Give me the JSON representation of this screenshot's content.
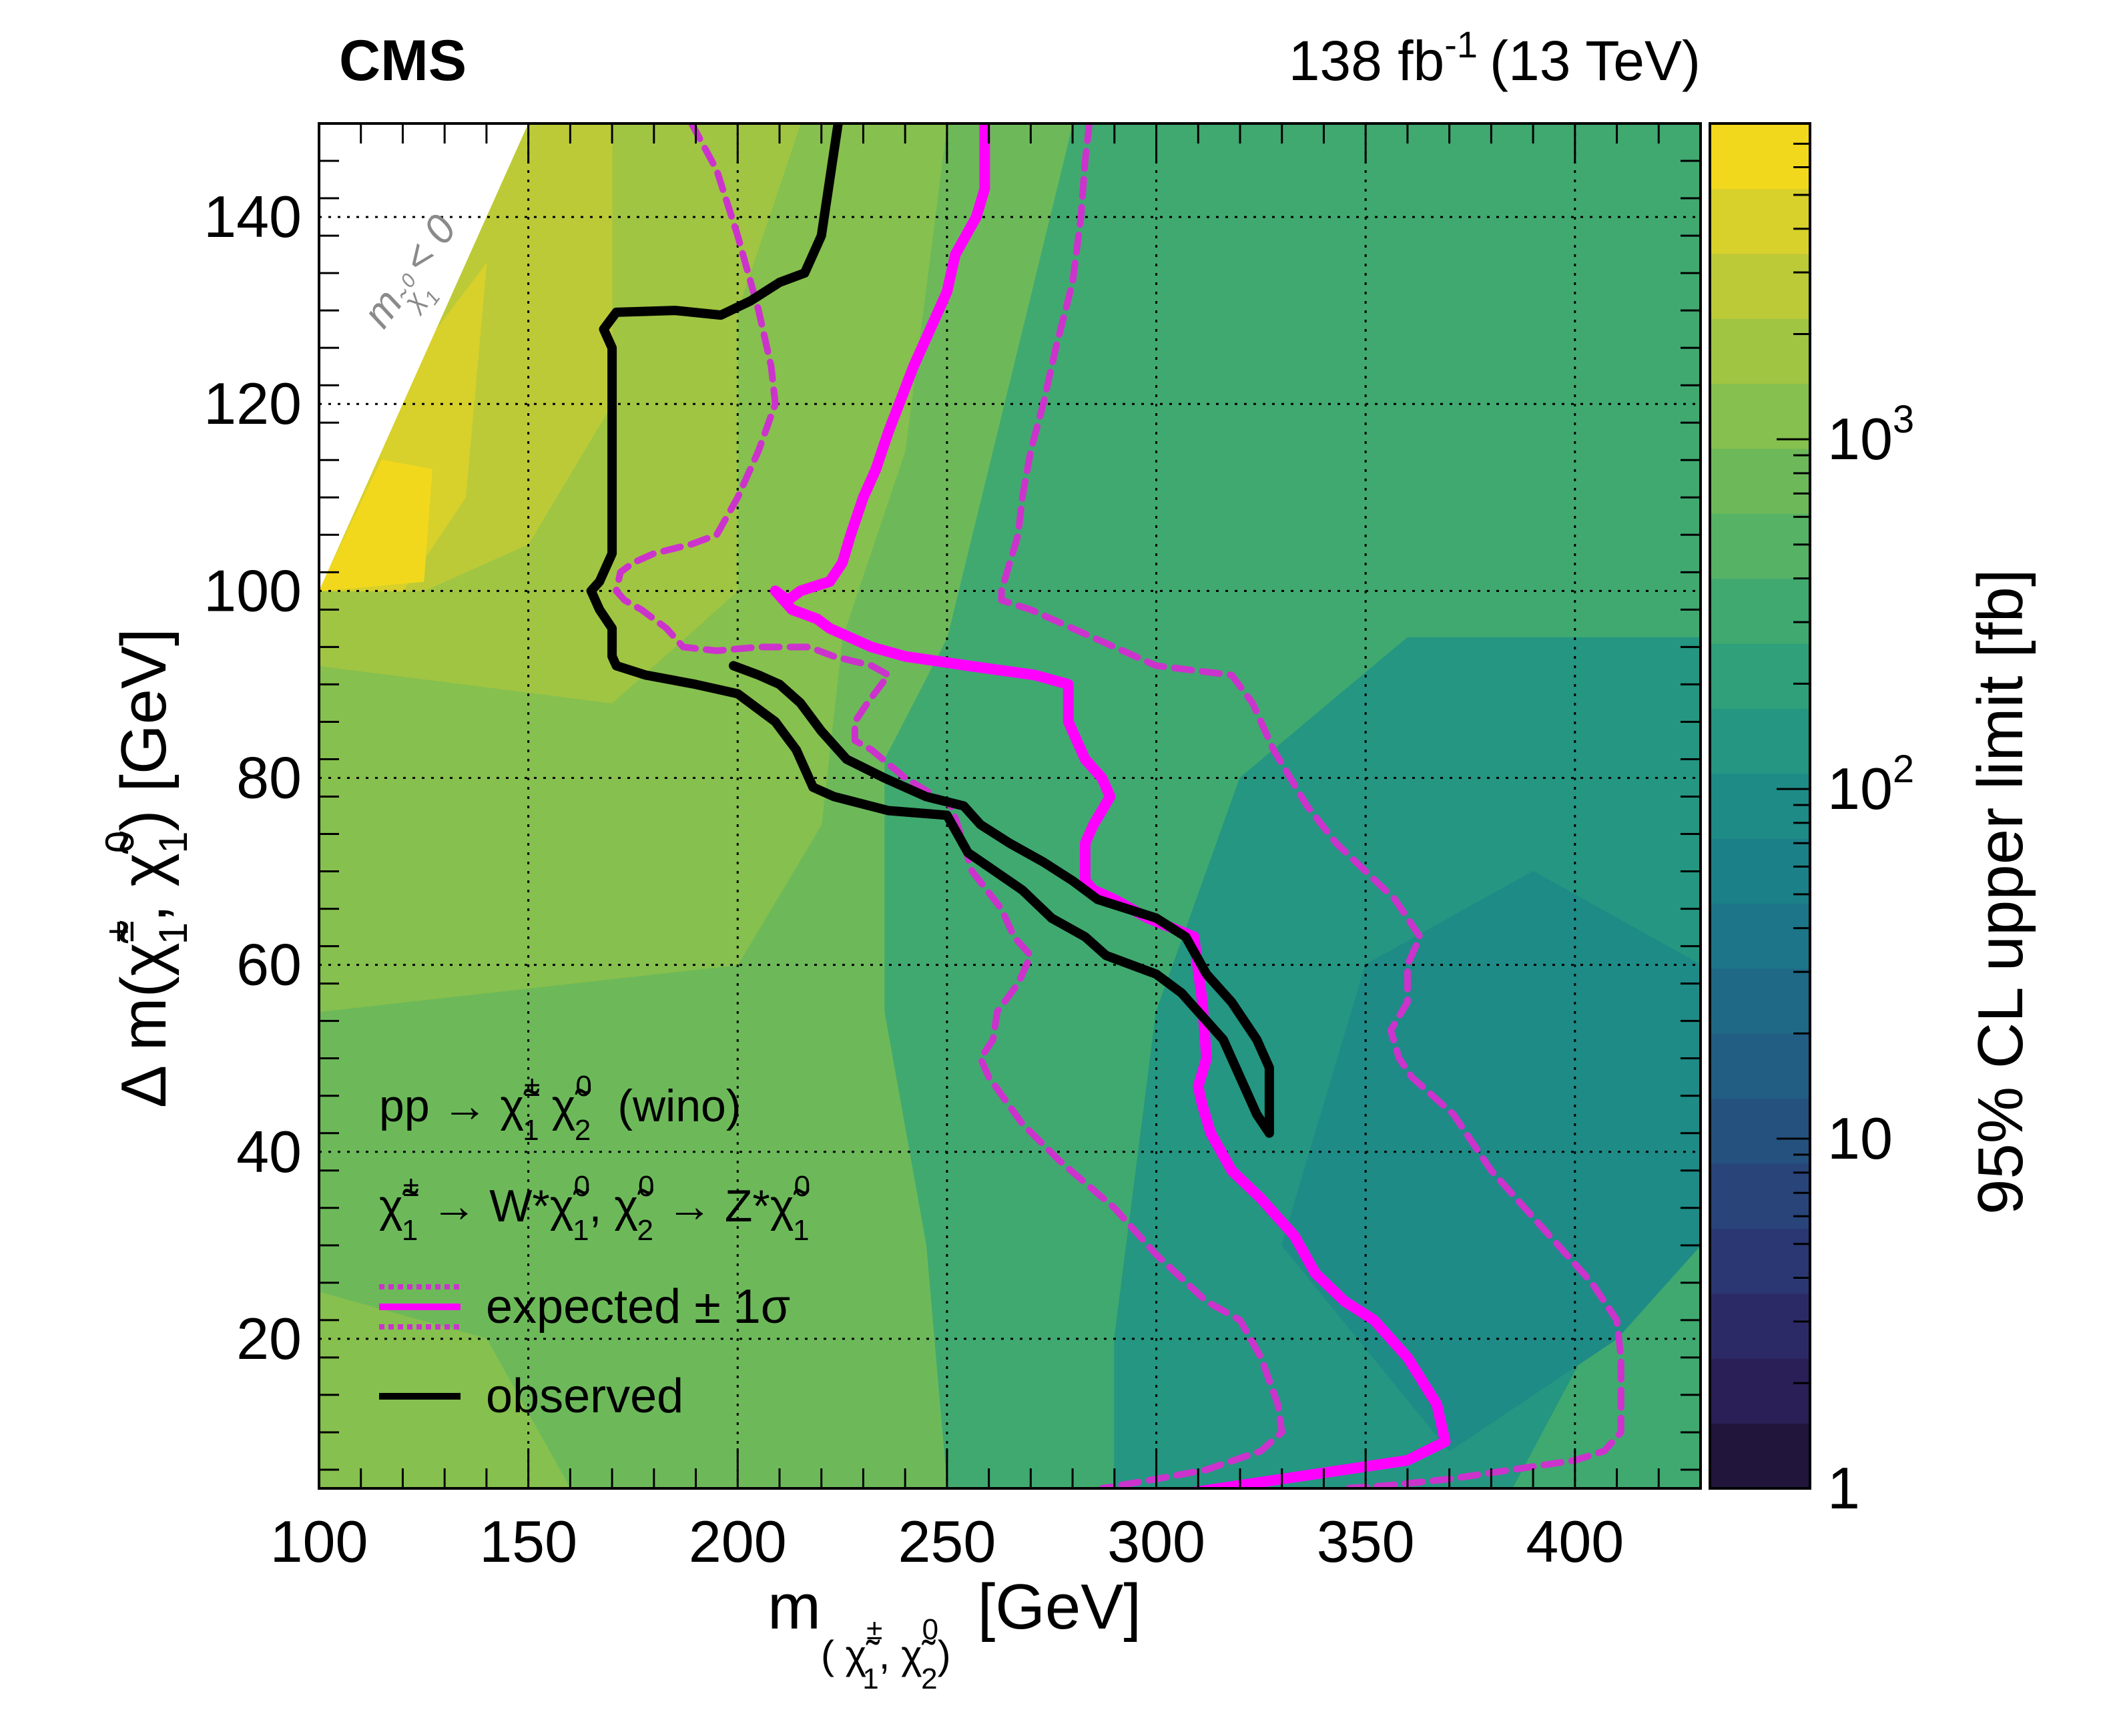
{
  "header": {
    "experiment": "CMS",
    "lumi_value": "138 fb",
    "lumi_exp": "-1",
    "energy": "(13 TeV)"
  },
  "axes": {
    "x_main": "m",
    "x_sub": "( χ̃",
    "x_sub2": "±",
    "x_sub3": "1",
    "x_sub4": ", χ̃",
    "x_sub5": "0",
    "x_sub6": "2",
    "x_sub7": ")",
    "x_unit": "[GeV]",
    "y_main": "Δ m(χ̃",
    "y_pm": "±",
    "y_one_a": "1",
    "y_mid": ", χ̃",
    "y_zero": "0",
    "y_one_b": "1",
    "y_unit": ") [GeV]",
    "z_title": "95% CL upper limit [fb]"
  },
  "legend": {
    "process_a": "pp → χ̃",
    "process_a_sup1": "±",
    "process_a_sub1": "1",
    "process_a_mid": " χ̃",
    "process_a_sup2": "0",
    "process_a_sub2": "2",
    "process_a_tail": "(wino)",
    "decay_a": "χ̃",
    "decay_a_sup": "±",
    "decay_a_sub": "1",
    "decay_b": "→ W*χ̃",
    "decay_b_sup": "0",
    "decay_b_sub": "1",
    "decay_c": ",  χ̃",
    "decay_c_sup": "0",
    "decay_c_sub": "2",
    "decay_d": "→ Z*χ̃",
    "decay_d_sup": "0",
    "decay_d_sub": "1",
    "expected": "expected ± 1σ",
    "observed": "observed"
  },
  "forbidden_label": {
    "m": "m",
    "sub": "χ̃",
    "sub_sup": "0",
    "sub_sub": "1",
    "rel": "< 0"
  },
  "colors": {
    "expected": "#ff00ff",
    "expected_band": "#cc33cc",
    "observed": "#000000"
  },
  "chart_data": {
    "type": "heatmap",
    "xlim": [
      100,
      430
    ],
    "ylim": [
      4,
      150
    ],
    "zlim": [
      1,
      8000
    ],
    "z_log": true,
    "grid": true,
    "x_ticks": [
      100,
      150,
      200,
      250,
      300,
      350,
      400
    ],
    "y_ticks": [
      20,
      40,
      60,
      80,
      100,
      120,
      140
    ],
    "z_ticks": [
      {
        "v": 1,
        "base": "1",
        "exp": ""
      },
      {
        "v": 10,
        "base": "10",
        "exp": ""
      },
      {
        "v": 100,
        "base": "10",
        "exp": "2"
      },
      {
        "v": 1000,
        "base": "10",
        "exp": "3"
      }
    ],
    "palette": [
      "#21153b",
      "#2a1f56",
      "#2c2a66",
      "#2a3772",
      "#284479",
      "#25517e",
      "#225d83",
      "#1f6986",
      "#1c7588",
      "#1c8088",
      "#1e8b86",
      "#249681",
      "#2fa07a",
      "#40a970",
      "#56b265",
      "#6db95a",
      "#86c04e",
      "#a0c543",
      "#bcca38",
      "#d8d02b",
      "#f2d81c"
    ],
    "regions": [
      {
        "z": 300,
        "points": [
          [
            100,
            4
          ],
          [
            430,
            4
          ],
          [
            430,
            150
          ],
          [
            100,
            150
          ]
        ]
      },
      {
        "z": 700,
        "points": [
          [
            100,
            4
          ],
          [
            250,
            4
          ],
          [
            245,
            30
          ],
          [
            235,
            55
          ],
          [
            235,
            82
          ],
          [
            250,
            95
          ],
          [
            280,
            150
          ],
          [
            100,
            150
          ]
        ]
      },
      {
        "z": 1300,
        "points": [
          [
            100,
            55
          ],
          [
            200,
            60
          ],
          [
            220,
            75
          ],
          [
            225,
            95
          ],
          [
            240,
            115
          ],
          [
            250,
            150
          ],
          [
            100,
            150
          ]
        ]
      },
      {
        "z": 2000,
        "points": [
          [
            100,
            92
          ],
          [
            170,
            88
          ],
          [
            200,
            100
          ],
          [
            200,
            130
          ],
          [
            215,
            150
          ],
          [
            100,
            150
          ]
        ]
      },
      {
        "z": 3000,
        "points": [
          [
            100,
            100
          ],
          [
            150,
            150
          ],
          [
            170,
            150
          ],
          [
            170,
            120
          ],
          [
            150,
            105
          ],
          [
            125,
            100
          ]
        ]
      },
      {
        "z": 4500,
        "points": [
          [
            100,
            100
          ],
          [
            123,
            125
          ],
          [
            140,
            135
          ],
          [
            135,
            110
          ],
          [
            120,
            100
          ]
        ]
      },
      {
        "z": 6000,
        "points": [
          [
            100,
            100
          ],
          [
            115,
            114
          ],
          [
            127,
            113
          ],
          [
            125,
            101
          ]
        ]
      },
      {
        "z": 150,
        "points": [
          [
            290,
            4
          ],
          [
            385,
            4
          ],
          [
            410,
            25
          ],
          [
            430,
            40
          ],
          [
            430,
            95
          ],
          [
            360,
            95
          ],
          [
            320,
            80
          ],
          [
            300,
            55
          ],
          [
            290,
            20
          ]
        ]
      },
      {
        "z": 90,
        "points": [
          [
            330,
            30
          ],
          [
            370,
            8
          ],
          [
            410,
            20
          ],
          [
            430,
            30
          ],
          [
            430,
            60
          ],
          [
            390,
            70
          ],
          [
            350,
            60
          ]
        ]
      },
      {
        "z": 1000,
        "points": [
          [
            100,
            4
          ],
          [
            160,
            4
          ],
          [
            140,
            20
          ],
          [
            100,
            25
          ]
        ]
      }
    ],
    "forbidden_region": [
      [
        100,
        100
      ],
      [
        150,
        150
      ],
      [
        100,
        150
      ]
    ],
    "series": [
      {
        "name": "observed",
        "style": "observed",
        "points": [
          [
            224,
            150
          ],
          [
            220,
            138
          ],
          [
            217,
            135
          ],
          [
            216,
            134
          ],
          [
            210,
            133
          ],
          [
            203,
            131
          ],
          [
            196,
            129.5
          ],
          [
            185,
            130
          ],
          [
            171,
            129.8
          ],
          [
            168,
            128
          ],
          [
            170,
            126
          ],
          [
            170,
            122
          ],
          [
            170,
            110
          ],
          [
            170,
            104
          ],
          [
            167,
            101
          ],
          [
            165,
            100
          ],
          [
            167,
            98
          ],
          [
            170,
            96
          ],
          [
            170,
            93
          ],
          [
            171,
            92
          ],
          [
            178,
            91
          ],
          [
            190,
            90
          ],
          [
            200,
            89
          ],
          [
            209,
            86
          ],
          [
            214,
            83
          ],
          [
            218,
            79
          ],
          [
            223,
            78
          ],
          [
            236,
            76.5
          ],
          [
            250,
            76
          ],
          [
            255,
            72
          ],
          [
            268,
            68
          ],
          [
            275,
            65
          ],
          [
            283,
            63
          ],
          [
            288,
            61
          ],
          [
            300,
            59
          ],
          [
            306,
            57
          ],
          [
            310,
            55
          ],
          [
            316,
            52
          ],
          [
            320,
            48
          ],
          [
            324,
            44
          ],
          [
            327,
            42
          ],
          [
            327,
            49
          ],
          [
            324,
            52
          ],
          [
            318,
            56
          ],
          [
            312,
            59
          ],
          [
            307,
            63
          ],
          [
            300,
            65
          ],
          [
            293,
            66
          ],
          [
            286,
            67
          ],
          [
            280,
            69
          ],
          [
            273,
            71
          ],
          [
            265,
            73
          ],
          [
            258,
            75
          ],
          [
            254,
            77
          ],
          [
            245,
            78
          ],
          [
            235,
            80
          ],
          [
            226,
            82
          ],
          [
            220,
            85
          ],
          [
            215,
            88
          ],
          [
            210,
            90
          ],
          [
            205,
            91
          ],
          [
            199,
            92
          ]
        ]
      },
      {
        "name": "expected",
        "style": "expected",
        "points": [
          [
            259,
            150
          ],
          [
            259,
            143
          ],
          [
            257,
            140
          ],
          [
            252,
            136
          ],
          [
            250,
            132
          ],
          [
            246,
            128
          ],
          [
            242,
            124
          ],
          [
            236,
            117
          ],
          [
            233,
            113
          ],
          [
            230,
            110
          ],
          [
            227,
            106
          ],
          [
            225,
            103
          ],
          [
            222,
            101
          ],
          [
            215,
            100
          ],
          [
            212,
            99
          ],
          [
            209,
            100
          ],
          [
            213,
            98
          ],
          [
            219,
            97
          ],
          [
            222,
            96
          ],
          [
            227,
            95
          ],
          [
            232,
            94
          ],
          [
            240,
            93
          ],
          [
            255,
            92
          ],
          [
            271,
            91
          ],
          [
            279,
            90
          ],
          [
            279,
            86
          ],
          [
            283,
            82
          ],
          [
            287,
            80
          ],
          [
            289,
            78
          ],
          [
            285,
            75
          ],
          [
            283,
            73
          ],
          [
            283,
            69
          ],
          [
            285,
            68
          ],
          [
            290,
            67
          ],
          [
            298,
            65
          ],
          [
            309,
            63
          ],
          [
            311,
            56
          ],
          [
            312,
            50
          ],
          [
            310,
            47
          ],
          [
            311,
            45
          ],
          [
            313,
            42
          ],
          [
            318,
            38
          ],
          [
            325,
            35
          ],
          [
            333,
            31
          ],
          [
            338,
            27
          ],
          [
            345,
            24
          ],
          [
            352,
            22
          ],
          [
            360,
            18
          ],
          [
            367,
            13
          ],
          [
            369,
            9
          ],
          [
            360,
            7
          ],
          [
            345,
            6
          ],
          [
            330,
            5
          ],
          [
            315,
            4
          ],
          [
            300,
            3
          ]
        ]
      },
      {
        "name": "expected +1σ",
        "style": "band",
        "points": [
          [
            284,
            150
          ],
          [
            283,
            146
          ],
          [
            282,
            140
          ],
          [
            280,
            133
          ],
          [
            276,
            126
          ],
          [
            273,
            120
          ],
          [
            270,
            115
          ],
          [
            268,
            110
          ],
          [
            267,
            106
          ],
          [
            265,
            103
          ],
          [
            263,
            100
          ],
          [
            263,
            99
          ],
          [
            270,
            98
          ],
          [
            280,
            96
          ],
          [
            290,
            94
          ],
          [
            300,
            92
          ],
          [
            318,
            91
          ],
          [
            323,
            88
          ],
          [
            328,
            83
          ],
          [
            336,
            77
          ],
          [
            343,
            73
          ],
          [
            350,
            70
          ],
          [
            357,
            67
          ],
          [
            363,
            63
          ],
          [
            360,
            60
          ],
          [
            360,
            56
          ],
          [
            356,
            53
          ],
          [
            358,
            50
          ],
          [
            361,
            48
          ],
          [
            371,
            44
          ],
          [
            380,
            38
          ],
          [
            392,
            32
          ],
          [
            404,
            26
          ],
          [
            410,
            22
          ],
          [
            411,
            18
          ],
          [
            411,
            10
          ],
          [
            407,
            8
          ],
          [
            400,
            7
          ],
          [
            385,
            6
          ],
          [
            370,
            5
          ],
          [
            355,
            4.3
          ],
          [
            345,
            4
          ]
        ]
      },
      {
        "name": "expected -1σ",
        "style": "band",
        "points": [
          [
            189,
            150
          ],
          [
            195,
            145
          ],
          [
            200,
            138
          ],
          [
            205,
            130
          ],
          [
            208,
            124
          ],
          [
            209,
            120
          ],
          [
            205,
            115
          ],
          [
            200,
            110
          ],
          [
            195,
            106
          ],
          [
            189,
            105
          ],
          [
            180,
            104
          ],
          [
            175,
            103
          ],
          [
            172,
            102
          ],
          [
            171,
            100
          ],
          [
            173,
            99
          ],
          [
            177,
            98
          ],
          [
            180,
            97
          ],
          [
            183,
            96
          ],
          [
            187,
            94
          ],
          [
            195,
            93.6
          ],
          [
            205,
            94
          ],
          [
            217,
            94
          ],
          [
            223,
            93
          ],
          [
            232,
            92
          ],
          [
            236,
            91
          ],
          [
            231,
            88
          ],
          [
            228,
            86
          ],
          [
            228,
            84
          ],
          [
            232,
            83
          ],
          [
            240,
            80
          ],
          [
            251,
            77
          ],
          [
            254,
            73
          ],
          [
            256,
            70
          ],
          [
            263,
            66
          ],
          [
            266,
            63
          ],
          [
            270,
            61
          ],
          [
            267,
            58
          ],
          [
            262,
            55
          ],
          [
            261,
            52
          ],
          [
            258,
            50
          ],
          [
            260,
            48
          ],
          [
            268,
            43
          ],
          [
            277,
            39
          ],
          [
            290,
            34
          ],
          [
            300,
            29
          ],
          [
            312,
            24
          ],
          [
            320,
            22
          ],
          [
            325,
            18
          ],
          [
            329,
            13
          ],
          [
            330,
            10
          ],
          [
            325,
            8
          ],
          [
            312,
            6
          ],
          [
            300,
            5
          ],
          [
            287,
            4
          ]
        ]
      }
    ]
  }
}
